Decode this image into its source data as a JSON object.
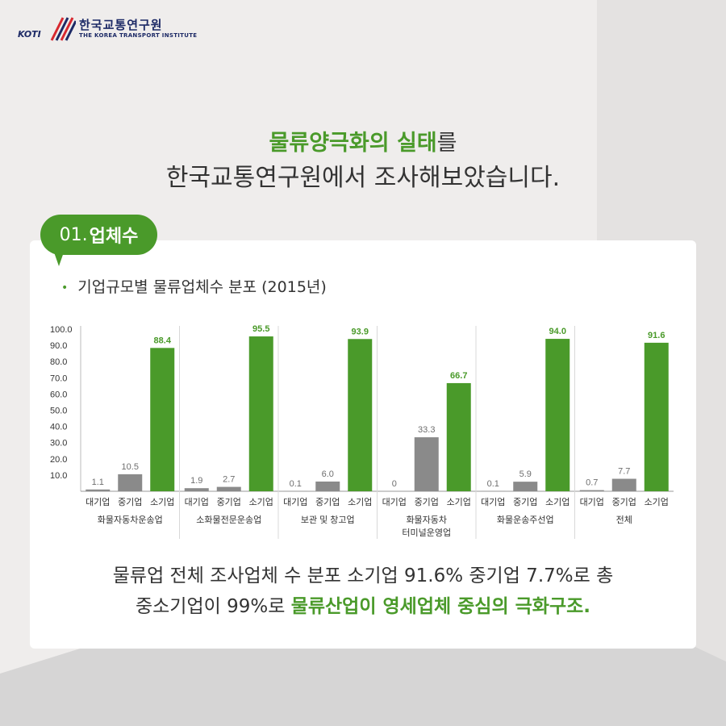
{
  "logo": {
    "acronym": "KOTI",
    "name_kr": "한국교통연구원",
    "name_en": "THE KOREA TRANSPORT INSTITUTE"
  },
  "headline": {
    "line1_highlight": "물류양극화의 실태",
    "line1_rest": "를",
    "line2": "한국교통연구원에서 조사해보았습니다."
  },
  "section": {
    "number": "01.",
    "title": "업체수"
  },
  "chart_title": "기업규모별 물류업체수 분포 (2015년)",
  "summary": {
    "line1": "물류업 전체 조사업체 수 분포 소기업 91.6% 중기업 7.7%로 총",
    "line2_plain": "중소기업이 99%로 ",
    "line2_highlight": "물류산업이 영세업체 중심의 극화구조."
  },
  "colors": {
    "green": "#4a9a2a",
    "gray": "#8a8a8a",
    "dark_gray": "#6e6e6e",
    "navy": "#1d2a66",
    "red": "#d7282f"
  },
  "chart_data": {
    "type": "bar",
    "ylim": [
      0,
      100
    ],
    "yticks": [
      "100.0",
      "90.0",
      "80.0",
      "70.0",
      "60.0",
      "50.0",
      "40.0",
      "30.0",
      "20.0",
      "10.0"
    ],
    "subcategories": [
      "대기업",
      "중기업",
      "소기업"
    ],
    "groups": [
      {
        "name": [
          "화물자동차운송업"
        ],
        "values": [
          1.1,
          10.5,
          88.4
        ],
        "labels": [
          "1.1",
          "10.5",
          "88.4"
        ]
      },
      {
        "name": [
          "소화물전문운송업"
        ],
        "values": [
          1.9,
          2.7,
          95.5
        ],
        "labels": [
          "1.9",
          "2.7",
          "95.5"
        ]
      },
      {
        "name": [
          "보관 및 창고업"
        ],
        "values": [
          0.1,
          6.0,
          93.9
        ],
        "labels": [
          "0.1",
          "6.0",
          "93.9"
        ]
      },
      {
        "name": [
          "화물자동차",
          "터미널운영업"
        ],
        "values": [
          0,
          33.3,
          66.7
        ],
        "labels": [
          "0",
          "33.3",
          "66.7"
        ]
      },
      {
        "name": [
          "화물운송주선업"
        ],
        "values": [
          0.1,
          5.9,
          94.0
        ],
        "labels": [
          "0.1",
          "5.9",
          "94.0"
        ]
      },
      {
        "name": [
          "전체"
        ],
        "values": [
          0.7,
          7.7,
          91.6
        ],
        "labels": [
          "0.7",
          "7.7",
          "91.6"
        ]
      }
    ]
  }
}
